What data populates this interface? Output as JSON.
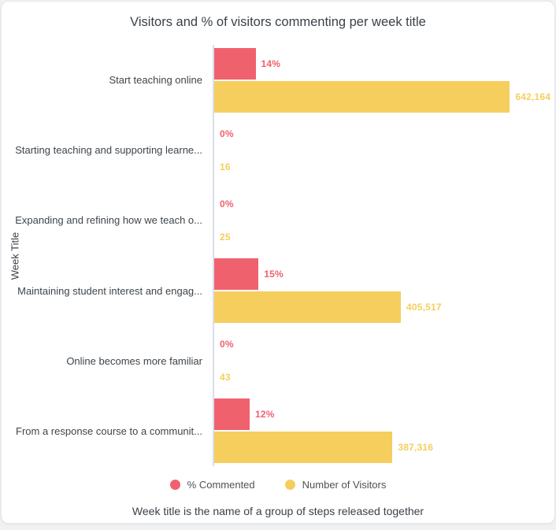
{
  "card": {
    "title": "Visitors and % of visitors commenting per week title",
    "footer": "Week title is the name of a group of steps released together"
  },
  "colors": {
    "pink": "#f0616e",
    "yellow": "#f5ce5e",
    "axis_line": "#d9dee9",
    "text_dark": "#3a4149"
  },
  "chart_data": {
    "type": "bar",
    "orientation": "horizontal",
    "title": "Visitors and % of visitors commenting per week title",
    "xlabel": "",
    "ylabel": "Week Title",
    "grid": false,
    "legend_position": "bottom",
    "categories": [
      "Start teaching online",
      "Starting teaching and supporting learne...",
      "Expanding and refining how we teach o...",
      "Maintaining student interest and engag...",
      "Online becomes more familiar",
      "From a response course to a communit..."
    ],
    "series": [
      {
        "name": "% Commented",
        "color": "#f0616e",
        "axis_max": 100,
        "values": [
          14,
          0,
          0,
          15,
          0,
          12
        ],
        "labels": [
          "14%",
          "0%",
          "0%",
          "15%",
          "0%",
          "12%"
        ]
      },
      {
        "name": "Number of Visitors",
        "color": "#f5ce5e",
        "axis_max": 642164,
        "values": [
          642164,
          16,
          25,
          405517,
          43,
          387316
        ],
        "labels": [
          "642,164",
          "16",
          "25",
          "405,517",
          "43",
          "387,316"
        ]
      }
    ]
  }
}
